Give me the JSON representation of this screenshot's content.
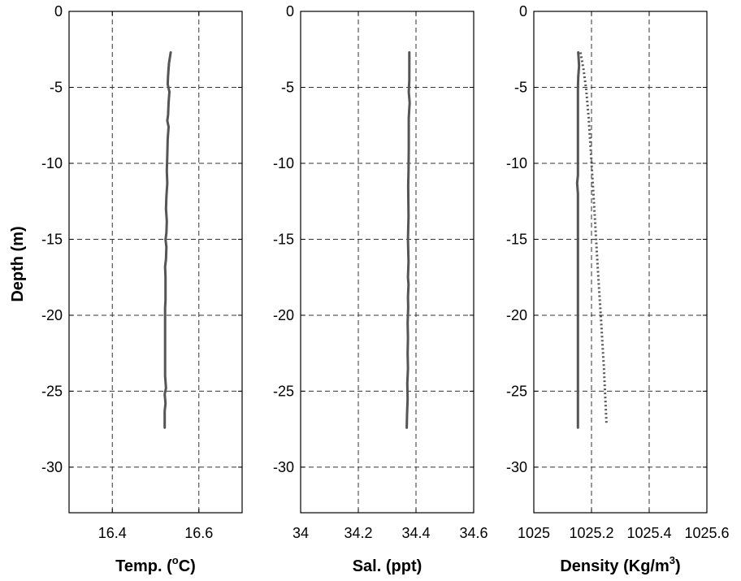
{
  "chart_data": {
    "type": "line",
    "ylabel": "Depth (m)",
    "yticks": [
      0,
      -5,
      -10,
      -15,
      -20,
      -25,
      -30
    ],
    "ylim": [
      -33,
      0
    ],
    "grid": true,
    "panels": [
      {
        "id": "temp",
        "xlabel": "Temp. (",
        "xlabel_sup": "o",
        "xlabel_after": "C)",
        "xlim": [
          16.3,
          16.7
        ],
        "xticks": [
          16.4,
          16.6
        ],
        "xtick_labels": [
          "16.4",
          "16.6"
        ],
        "series": [
          {
            "style": "solid",
            "color": "#555555",
            "points": [
              [
                16.535,
                -2.7
              ],
              [
                16.531,
                -3.4
              ],
              [
                16.529,
                -4.2
              ],
              [
                16.528,
                -4.8
              ],
              [
                16.532,
                -5.3
              ],
              [
                16.53,
                -6.0
              ],
              [
                16.529,
                -6.8
              ],
              [
                16.527,
                -7.2
              ],
              [
                16.53,
                -7.6
              ],
              [
                16.528,
                -8.4
              ],
              [
                16.527,
                -9.5
              ],
              [
                16.526,
                -10.5
              ],
              [
                16.527,
                -11.3
              ],
              [
                16.525,
                -12.2
              ],
              [
                16.524,
                -13.0
              ],
              [
                16.526,
                -13.8
              ],
              [
                16.525,
                -14.6
              ],
              [
                16.523,
                -15.0
              ],
              [
                16.525,
                -15.5
              ],
              [
                16.524,
                -16.3
              ],
              [
                16.522,
                -16.8
              ],
              [
                16.523,
                -17.5
              ],
              [
                16.523,
                -19.0
              ],
              [
                16.522,
                -19.5
              ],
              [
                16.522,
                -22.0
              ],
              [
                16.522,
                -24.0
              ],
              [
                16.524,
                -24.8
              ],
              [
                16.521,
                -25.2
              ],
              [
                16.523,
                -25.8
              ],
              [
                16.521,
                -26.3
              ],
              [
                16.521,
                -27.4
              ]
            ]
          }
        ]
      },
      {
        "id": "sal",
        "xlabel": "Sal. (ppt)",
        "xlim": [
          34.0,
          34.6
        ],
        "xticks": [
          34.0,
          34.2,
          34.4,
          34.6
        ],
        "xtick_labels": [
          "34",
          "34.2",
          "34.4",
          "34.6"
        ],
        "series": [
          {
            "style": "solid",
            "color": "#555555",
            "points": [
              [
                34.377,
                -2.7
              ],
              [
                34.377,
                -4.5
              ],
              [
                34.375,
                -5.3
              ],
              [
                34.378,
                -6.0
              ],
              [
                34.375,
                -7.0
              ],
              [
                34.375,
                -9.0
              ],
              [
                34.374,
                -10.5
              ],
              [
                34.373,
                -11.5
              ],
              [
                34.374,
                -13.5
              ],
              [
                34.372,
                -15.0
              ],
              [
                34.374,
                -16.5
              ],
              [
                34.372,
                -17.5
              ],
              [
                34.374,
                -18.0
              ],
              [
                34.372,
                -18.8
              ],
              [
                34.373,
                -19.5
              ],
              [
                34.371,
                -20.5
              ],
              [
                34.372,
                -21.5
              ],
              [
                34.371,
                -22.5
              ],
              [
                34.372,
                -23.5
              ],
              [
                34.37,
                -24.5
              ],
              [
                34.371,
                -25.5
              ],
              [
                34.369,
                -26.5
              ],
              [
                34.368,
                -27.4
              ]
            ]
          }
        ]
      },
      {
        "id": "density",
        "xlabel": "Density (Kg/m",
        "xlabel_sup": "3",
        "xlabel_after": ")",
        "xlim": [
          1025.0,
          1025.6
        ],
        "xticks": [
          1025.0,
          1025.2,
          1025.4,
          1025.6
        ],
        "xtick_labels": [
          "1025",
          "1025.2",
          "1025.4",
          "1025.6"
        ],
        "series": [
          {
            "style": "solid",
            "color": "#555555",
            "points": [
              [
                1025.154,
                -2.7
              ],
              [
                1025.157,
                -3.6
              ],
              [
                1025.154,
                -4.3
              ],
              [
                1025.153,
                -5.0
              ],
              [
                1025.153,
                -10.8
              ],
              [
                1025.15,
                -11.3
              ],
              [
                1025.153,
                -12.0
              ],
              [
                1025.153,
                -27.4
              ]
            ]
          },
          {
            "style": "dotted",
            "color": "#555555",
            "points": [
              [
                1025.162,
                -2.7
              ],
              [
                1025.172,
                -3.8
              ],
              [
                1025.182,
                -5.2
              ],
              [
                1025.19,
                -7.0
              ],
              [
                1025.197,
                -9.0
              ],
              [
                1025.205,
                -11.5
              ],
              [
                1025.213,
                -14.0
              ],
              [
                1025.222,
                -17.0
              ],
              [
                1025.232,
                -20.0
              ],
              [
                1025.243,
                -23.5
              ],
              [
                1025.252,
                -27.2
              ]
            ]
          }
        ]
      }
    ]
  }
}
